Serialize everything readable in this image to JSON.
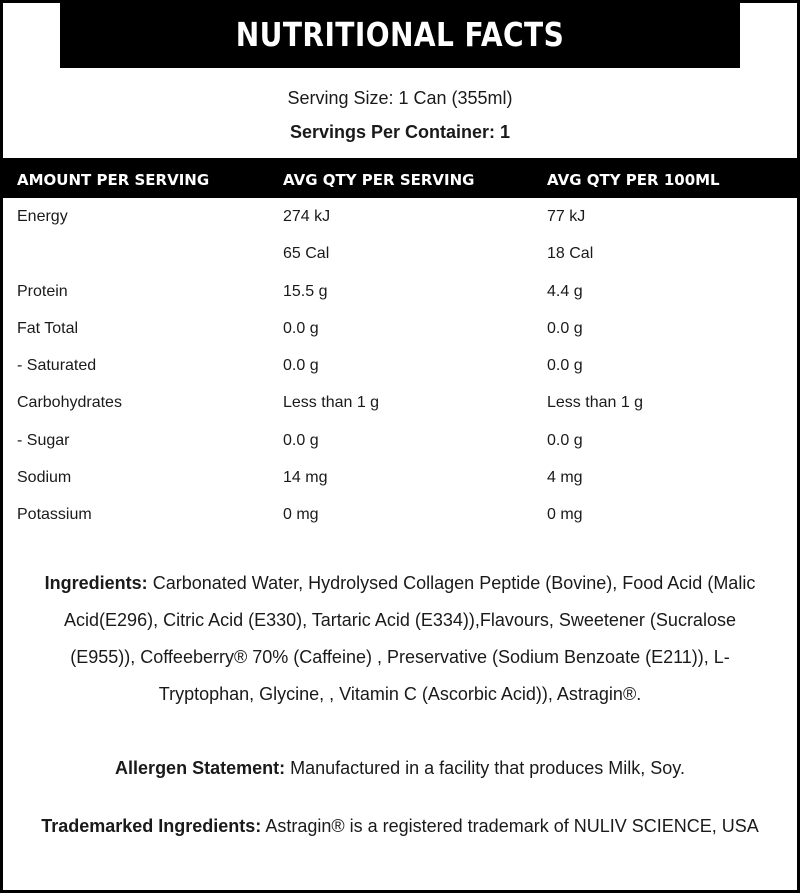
{
  "title": "Nutritional Facts",
  "serving_size": "Serving Size: 1 Can (355ml)",
  "servings_per_container": "Servings Per Container: 1",
  "table": {
    "headers": [
      "AMOUNT PER SERVING",
      "AVG QTY PER SERVING",
      "AVG QTY PER 100ML"
    ],
    "rows": [
      [
        "Energy",
        "274 kJ",
        "77 kJ"
      ],
      [
        "",
        "65 Cal",
        "18 Cal"
      ],
      [
        "Protein",
        "15.5 g",
        "4.4 g"
      ],
      [
        "Fat Total",
        "0.0 g",
        "0.0 g"
      ],
      [
        "- Saturated",
        "0.0 g",
        "0.0 g"
      ],
      [
        "Carbohydrates",
        "Less than 1 g",
        "Less than 1 g"
      ],
      [
        "- Sugar",
        "0.0 g",
        "0.0 g"
      ],
      [
        "Sodium",
        "14 mg",
        "4 mg"
      ],
      [
        "Potassium",
        "0 mg",
        "0 mg"
      ]
    ]
  },
  "ingredients": {
    "label": "Ingredients:",
    "text": " Carbonated Water, Hydrolysed Collagen Peptide (Bovine), Food Acid (Malic Acid(E296), Citric Acid (E330), Tartaric Acid (E334)),Flavours, Sweetener (Sucralose (E955)), Coffeeberry® 70% (Caffeine) , Preservative (Sodium Benzoate (E211)), L-Tryptophan, Glycine, , Vitamin C (Ascorbic Acid)), Astragin®."
  },
  "allergen": {
    "label": "Allergen Statement:",
    "text": " Manufactured in a facility that produces Milk, Soy."
  },
  "trademark": {
    "label": "Trademarked Ingredients:",
    "text": " Astragin® is a registered trademark of NULIV SCIENCE, USA"
  }
}
